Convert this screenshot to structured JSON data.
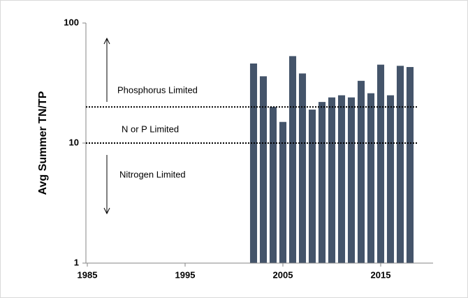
{
  "chart_data": {
    "type": "bar",
    "y_label": "Avg Summer TN/TP",
    "x": [
      2002,
      2003,
      2004,
      2005,
      2006,
      2007,
      2008,
      2009,
      2010,
      2011,
      2012,
      2013,
      2014,
      2015,
      2016,
      2017,
      2018
    ],
    "values": [
      46,
      36,
      20,
      15,
      53,
      38,
      19,
      22,
      24,
      25,
      24,
      33,
      26,
      45,
      25,
      44,
      43
    ],
    "color": "#44546a",
    "xlim": [
      1985,
      2020
    ],
    "xticks": [
      1985,
      1995,
      2005,
      2015
    ],
    "ylim": [
      1,
      100
    ],
    "yticks": [
      1,
      10,
      100
    ],
    "log_y": true,
    "reference_lines": [
      20,
      10
    ],
    "annotations": [
      "Phosphorus Limited",
      "N or P Limited",
      "Nitrogen Limited"
    ]
  }
}
